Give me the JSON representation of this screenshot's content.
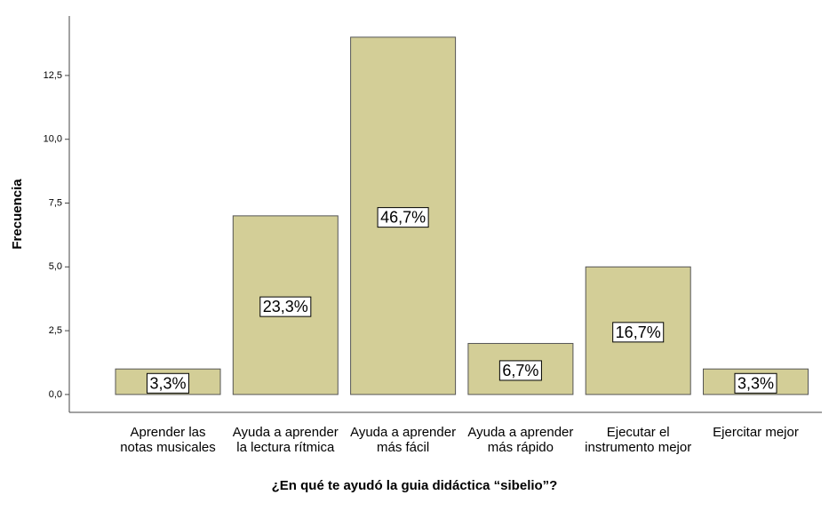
{
  "chart_data": {
    "type": "bar",
    "x_label": "¿En qué te ayudó la guia didáctica “sibelio”?",
    "y_label": "Frecuencia",
    "categories": [
      "Aprender las notas musicales",
      "Ayuda a aprender la lectura rítmica",
      "Ayuda a aprender más fácil",
      "Ayuda a aprender más rápido",
      "Ejecutar el instrumento mejor",
      "Ejercitar mejor"
    ],
    "values": [
      1,
      7,
      14,
      2,
      5,
      1
    ],
    "percentages": [
      3.3,
      23.3,
      46.7,
      6.7,
      16.7,
      3.3
    ],
    "percentage_labels": [
      "3,3%",
      "23,3%",
      "46,7%",
      "6,7%",
      "16,7%",
      "3,3%"
    ],
    "color": "#d3ce97",
    "ylim": [
      -0.7,
      14.83
    ],
    "yticks": [
      {
        "value": 0,
        "label": "0,0"
      },
      {
        "value": 2.5,
        "label": "2,5"
      },
      {
        "value": 5,
        "label": "5,0"
      },
      {
        "value": 7.5,
        "label": "7,5"
      },
      {
        "value": 10,
        "label": "10,0"
      },
      {
        "value": 12.5,
        "label": "12,5"
      }
    ]
  }
}
